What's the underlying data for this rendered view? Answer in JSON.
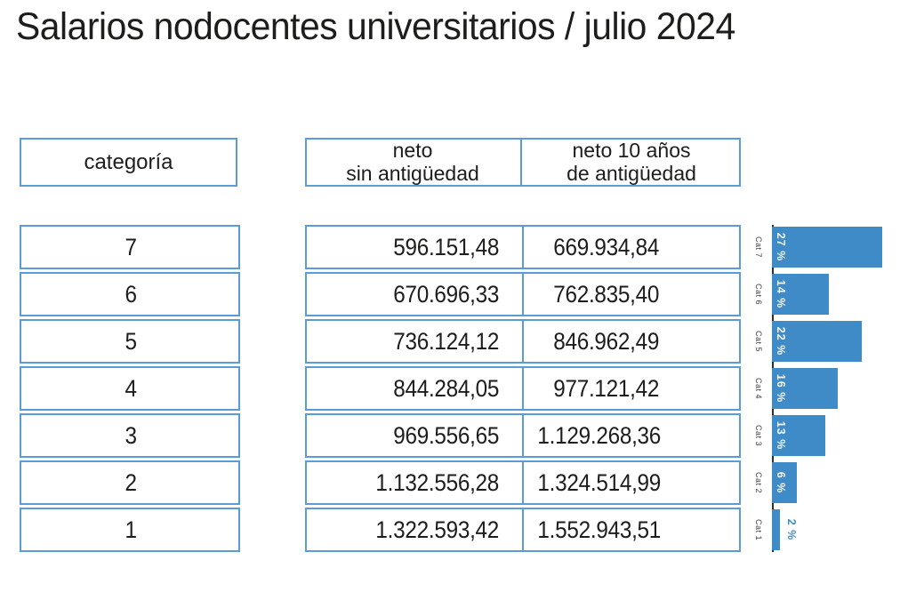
{
  "title": "Salarios nodocentes universitarios / julio 2024",
  "table": {
    "category_header": "categoría",
    "col1_header": {
      "line1": "neto",
      "line2": "sin antigüedad"
    },
    "col2_header": {
      "line1": "neto 10 años",
      "line2": "de antigüedad"
    },
    "rows": [
      {
        "category": "7",
        "neto_sin_antiguedad": "596.151,48",
        "neto_10_anios": "669.934,84"
      },
      {
        "category": "6",
        "neto_sin_antiguedad": "670.696,33",
        "neto_10_anios": "762.835,40"
      },
      {
        "category": "5",
        "neto_sin_antiguedad": "736.124,12",
        "neto_10_anios": "846.962,49"
      },
      {
        "category": "4",
        "neto_sin_antiguedad": "844.284,05",
        "neto_10_anios": "977.121,42"
      },
      {
        "category": "3",
        "neto_sin_antiguedad": "969.556,65",
        "neto_10_anios": "1.129.268,36"
      },
      {
        "category": "2",
        "neto_sin_antiguedad": "1.132.556,28",
        "neto_10_anios": "1.324.514,99"
      },
      {
        "category": "1",
        "neto_sin_antiguedad": "1.322.593,42",
        "neto_10_anios": "1.552.943,51"
      }
    ]
  },
  "chart_data": {
    "type": "bar",
    "orientation": "horizontal",
    "categories": [
      "Cat 7",
      "Cat 6",
      "Cat 5",
      "Cat 4",
      "Cat 3",
      "Cat 2",
      "Cat 1"
    ],
    "values": [
      27,
      14,
      22,
      16,
      13,
      6,
      2
    ],
    "labels": [
      "27 %",
      "14 %",
      "22 %",
      "16 %",
      "13 %",
      "6 %",
      "2 %"
    ],
    "xlim": [
      0,
      28
    ],
    "legend": "none",
    "grid": false,
    "bar_color": "#3e8bc8"
  },
  "colors": {
    "bar": "#3e8bc8",
    "table_border": "#5b9cd6",
    "text": "#1d1d1b",
    "axis": "#2e2e2e",
    "bar_label_inside": "#ffffff",
    "bar_label_outside": "#3e8bc8"
  }
}
